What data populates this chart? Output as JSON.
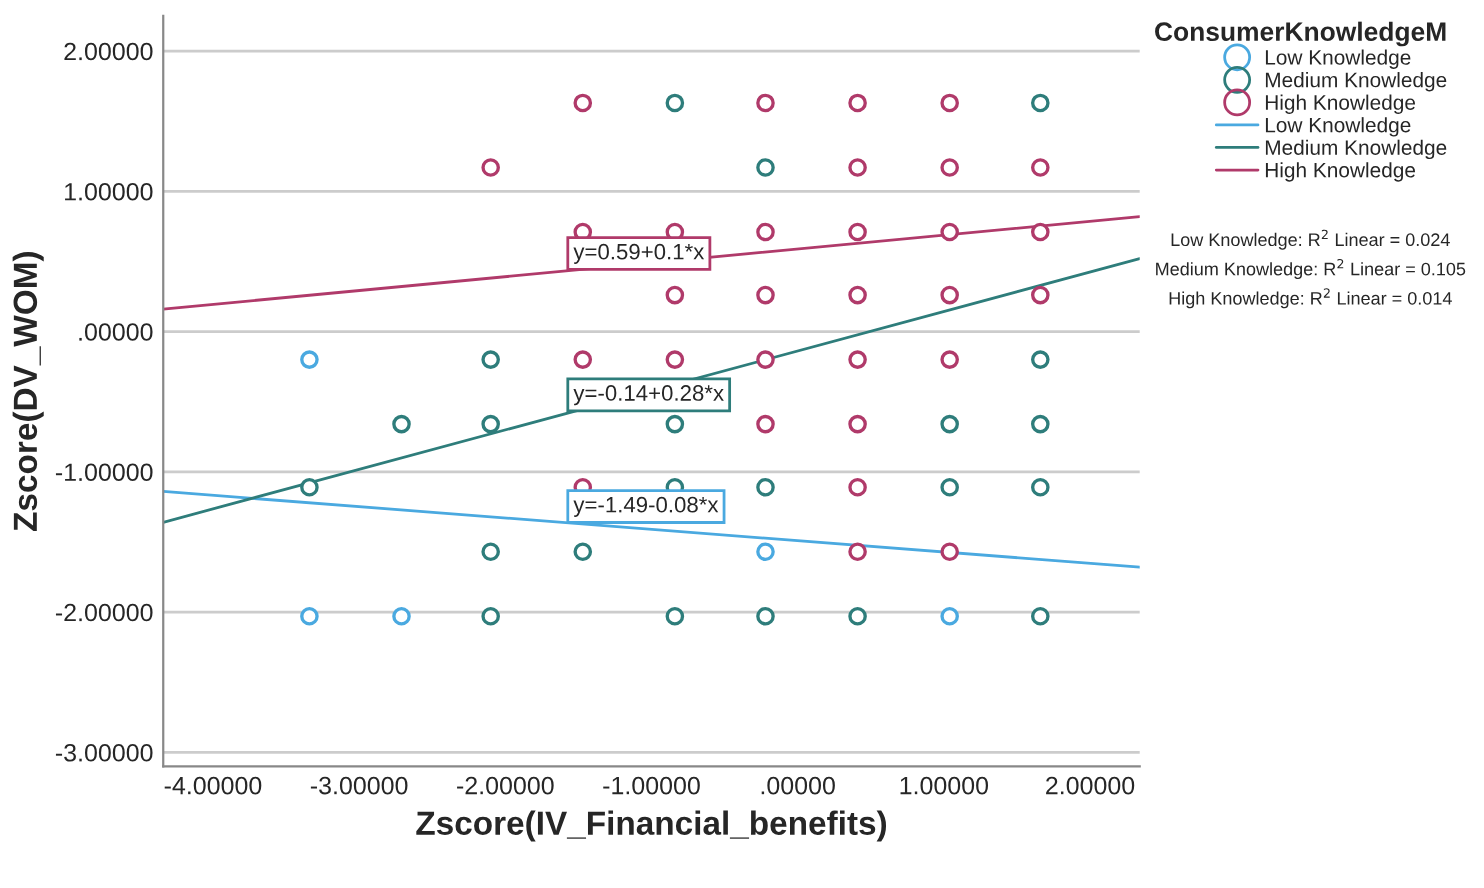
{
  "chart_data": {
    "type": "scatter",
    "xlabel": "Zscore(IV_Financial_benefits)",
    "ylabel": "Zscore(DV_WOM)",
    "legend_title": "ConsumerKnowledgeM",
    "legend": "right",
    "grid": "y",
    "xlim": [
      -4.34,
      2.34
    ],
    "ylim": [
      -3.1,
      2.25
    ],
    "xticks": [
      {
        "value": -4,
        "label": "-4.00000"
      },
      {
        "value": -3,
        "label": "-3.00000"
      },
      {
        "value": -2,
        "label": "-2.00000"
      },
      {
        "value": -1,
        "label": "-1.00000"
      },
      {
        "value": 0,
        "label": ".00000"
      },
      {
        "value": 1,
        "label": "1.00000"
      },
      {
        "value": 2,
        "label": "2.00000"
      }
    ],
    "yticks": [
      {
        "value": 2,
        "label": "2.00000"
      },
      {
        "value": 1,
        "label": "1.00000"
      },
      {
        "value": 0,
        "label": ".00000"
      },
      {
        "value": -1,
        "label": "-1.00000"
      },
      {
        "value": -2,
        "label": "-2.00000"
      },
      {
        "value": -3,
        "label": "-3.00000"
      }
    ],
    "series": [
      {
        "name": "Low Knowledge",
        "marker": "circle",
        "color": "#4aa9e0",
        "x": [
          -3.34,
          -3.34,
          -2.71,
          -0.22,
          1.04
        ],
        "values": [
          -0.2,
          -2.03,
          -2.03,
          -1.57,
          -2.03
        ]
      },
      {
        "name": "Medium Knowledge",
        "marker": "circle",
        "color": "#2e7d7b",
        "x": [
          -3.34,
          -2.71,
          -2.1,
          -2.1,
          -2.1,
          -2.1,
          -1.47,
          -0.84,
          -0.84,
          -0.84,
          -0.84,
          -0.22,
          -0.22,
          -0.22,
          0.41,
          1.04,
          1.04,
          1.66,
          1.66,
          1.66,
          1.66,
          1.66
        ],
        "values": [
          -1.11,
          -0.66,
          -0.2,
          -0.66,
          -1.57,
          -2.03,
          -1.57,
          1.63,
          -0.66,
          -1.11,
          -2.03,
          1.17,
          -1.11,
          -2.03,
          -2.03,
          -0.66,
          -1.11,
          1.63,
          -0.2,
          -0.66,
          -1.11,
          -2.03
        ]
      },
      {
        "name": "High Knowledge",
        "marker": "circle",
        "color": "#b03a6a",
        "x": [
          -2.1,
          -1.47,
          -1.47,
          -1.47,
          -1.47,
          -0.84,
          -0.84,
          -0.84,
          -0.22,
          -0.22,
          -0.22,
          -0.22,
          -0.22,
          0.41,
          0.41,
          0.41,
          0.41,
          0.41,
          0.41,
          0.41,
          0.41,
          1.04,
          1.04,
          1.04,
          1.04,
          1.04,
          1.04,
          1.66,
          1.66,
          1.66
        ],
        "values": [
          1.17,
          1.63,
          0.71,
          -0.2,
          -1.11,
          0.71,
          0.26,
          -0.2,
          1.63,
          0.71,
          0.26,
          -0.2,
          -0.66,
          1.63,
          1.17,
          0.71,
          0.26,
          -0.2,
          -0.66,
          -1.11,
          -1.57,
          1.63,
          1.17,
          0.71,
          0.26,
          -0.2,
          -1.57,
          1.17,
          0.71,
          0.26
        ]
      },
      {
        "name": "Low Knowledge",
        "type": "line",
        "marker": "none",
        "color": "#4aa9e0",
        "x": [
          -4.34,
          2.34
        ],
        "values": [
          -1.14,
          -1.68
        ]
      },
      {
        "name": "Medium Knowledge",
        "type": "line",
        "marker": "none",
        "color": "#2e7d7b",
        "x": [
          -4.34,
          2.34
        ],
        "values": [
          -1.36,
          0.52
        ]
      },
      {
        "name": "High Knowledge",
        "type": "line",
        "marker": "none",
        "color": "#b03a6a",
        "x": [
          -4.34,
          2.34
        ],
        "values": [
          0.16,
          0.82
        ]
      }
    ],
    "annotations": [
      "y=-1.49-0.08*x",
      "y=-0.14+0.28*x",
      "y=0.59+0.1*x",
      "Low Knowledge: R$^{2}$ Linear = 0.024",
      "Medium Knowledge: R$^{2}$ Linear = 0.105",
      "High Knowledge: R$^{2}$ Linear = 0.014"
    ]
  }
}
